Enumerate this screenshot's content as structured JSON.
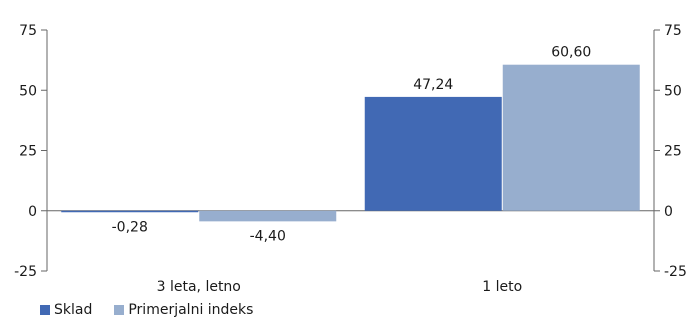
{
  "chart_data": {
    "type": "bar",
    "categories": [
      "3 leta, letno",
      "1 leto"
    ],
    "series": [
      {
        "name": "Sklad",
        "values": [
          -0.28,
          47.24
        ],
        "labels": [
          "-0,28",
          "47,24"
        ],
        "color": "#4169b4"
      },
      {
        "name": "Primerjalni indeks",
        "values": [
          -4.4,
          60.6
        ],
        "labels": [
          "-4,40",
          "60,60"
        ],
        "color": "#97aece"
      }
    ],
    "y_ticks": [
      75,
      50,
      25,
      0,
      -25
    ],
    "ylim": [
      -25,
      75
    ],
    "grid": false,
    "secondary_axis": true,
    "legend_placement": "bottom-left"
  }
}
